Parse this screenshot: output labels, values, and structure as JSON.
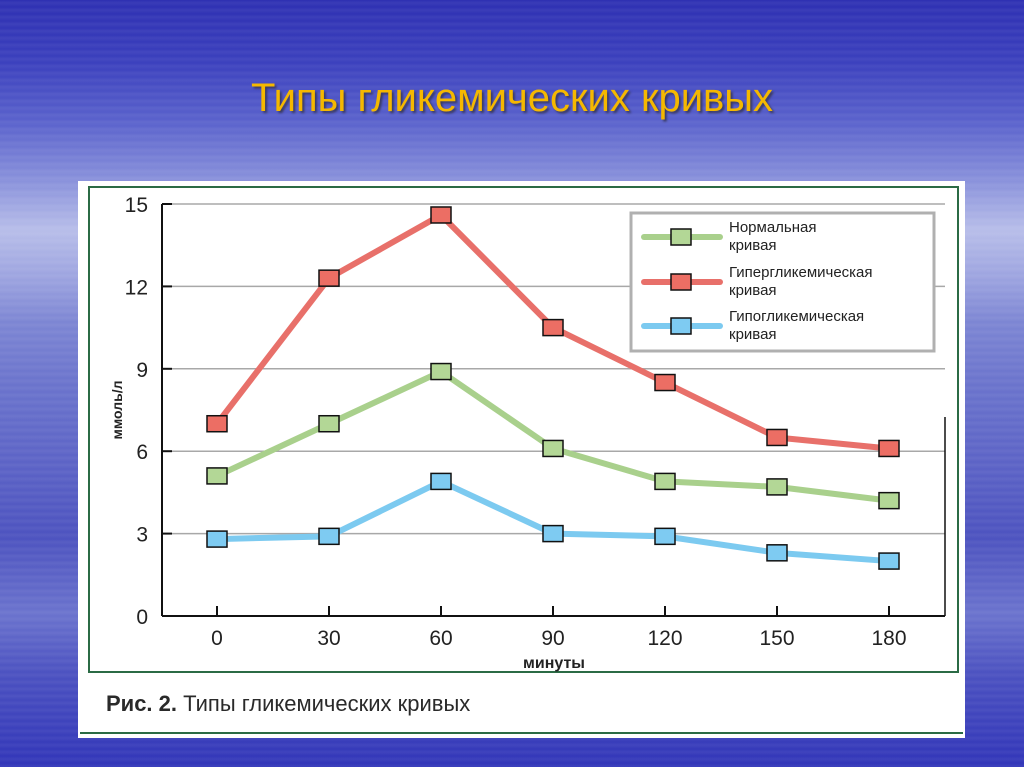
{
  "slide": {
    "title": "Типы гликемических кривых"
  },
  "figure": {
    "caption_prefix": "Рис. 2.",
    "caption_text": "Типы гликемических кривых"
  },
  "colors": {
    "title": "#f5b800",
    "normal_line": "#a9d08c",
    "normal_marker": "#b3d796",
    "hyper_line": "#e8706a",
    "hyper_marker": "#ec6e64",
    "hypo_line": "#7ccaf0",
    "hypo_marker": "#7ecbf2",
    "frame": "#2b6b45",
    "grid": "#a8a8a8"
  },
  "chart_data": {
    "type": "line",
    "title": "Типы гликемических кривых",
    "xlabel": "минуты",
    "ylabel": "ммоль/л",
    "x": [
      0,
      30,
      60,
      90,
      120,
      150,
      180
    ],
    "x_tick_labels": [
      "0",
      "30",
      "60",
      "90",
      "120",
      "150",
      "180"
    ],
    "y_tick_labels": [
      "0",
      "3",
      "6",
      "9",
      "12",
      "15"
    ],
    "y_ticks": [
      0,
      3,
      6,
      9,
      12,
      15
    ],
    "ylim": [
      0,
      15
    ],
    "grid": "horizontal",
    "legend_position": "upper right",
    "series": [
      {
        "name": "Нормальная кривая",
        "legend_line1": "Нормальная",
        "legend_line2": "кривая",
        "values": [
          5.1,
          7.0,
          8.9,
          6.1,
          4.9,
          4.7,
          4.2
        ]
      },
      {
        "name": "Гипергликемическая кривая",
        "legend_line1": "Гипергликемическая",
        "legend_line2": "кривая",
        "values": [
          7.0,
          12.3,
          14.6,
          10.5,
          8.5,
          6.5,
          6.1
        ]
      },
      {
        "name": "Гипогликемическая кривая",
        "legend_line1": "Гипогликемическая",
        "legend_line2": "кривая",
        "values": [
          2.8,
          2.9,
          4.9,
          3.0,
          2.9,
          2.3,
          2.0
        ]
      }
    ]
  }
}
